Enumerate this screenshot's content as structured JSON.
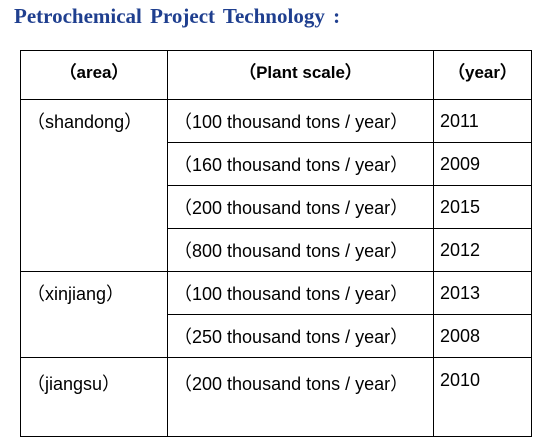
{
  "title": "Petrochemical  Project  Technology :",
  "table": {
    "headers": {
      "area": "（area）",
      "plant_scale": "（Plant scale）",
      "year": "（year）"
    },
    "groups": [
      {
        "area": "（shandong）",
        "rows": [
          {
            "scale": "（100 thousand tons / year）",
            "year": "2011"
          },
          {
            "scale": "（160 thousand tons / year）",
            "year": "2009"
          },
          {
            "scale": "（200 thousand tons / year）",
            "year": "2015"
          },
          {
            "scale": "（800 thousand tons / year）",
            "year": "2012"
          }
        ]
      },
      {
        "area": "（xinjiang）",
        "rows": [
          {
            "scale": "（100 thousand tons / year）",
            "year": "2013"
          },
          {
            "scale": "（250 thousand tons / year）",
            "year": "2008"
          }
        ]
      },
      {
        "area": "（jiangsu）",
        "rows": [
          {
            "scale": "（200 thousand tons / year）",
            "year": "2010"
          }
        ]
      }
    ]
  }
}
